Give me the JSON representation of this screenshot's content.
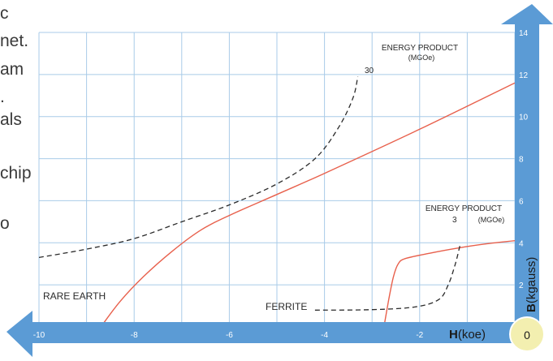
{
  "side_text": [
    "c",
    "net.",
    "am",
    ".",
    "als",
    "",
    "chip",
    "",
    "o"
  ],
  "chart_data": {
    "type": "line",
    "title": "",
    "xlabel_letter": "H",
    "xlabel_unit": "(koe)",
    "ylabel_letter": "B",
    "ylabel_unit": "(kgauss)",
    "xlim": [
      -10,
      0
    ],
    "ylim": [
      0,
      14
    ],
    "x_ticks": [
      -10,
      -8,
      -6,
      -4,
      -2
    ],
    "y_ticks": [
      2,
      4,
      6,
      8,
      10,
      12,
      14
    ],
    "origin_label": "0",
    "grid": true,
    "series": [
      {
        "name": "RARE EARTH",
        "style": "solid",
        "color": "#e8604c",
        "points": [
          [
            -8.7,
            0
          ],
          [
            -8.3,
            1.2
          ],
          [
            -7.8,
            2.4
          ],
          [
            -7.2,
            3.6
          ],
          [
            -6.6,
            4.6
          ],
          [
            -6.0,
            5.3
          ],
          [
            -5.0,
            6.3
          ],
          [
            -4.0,
            7.3
          ],
          [
            -2.0,
            9.4
          ],
          [
            0.0,
            11.6
          ]
        ]
      },
      {
        "name": "FERRITE",
        "style": "solid",
        "color": "#e8604c",
        "points": [
          [
            -2.75,
            0
          ],
          [
            -2.65,
            1.3
          ],
          [
            -2.55,
            2.4
          ],
          [
            -2.45,
            3.0
          ],
          [
            -2.3,
            3.25
          ],
          [
            -1.8,
            3.5
          ],
          [
            -1.2,
            3.75
          ],
          [
            -0.6,
            3.95
          ],
          [
            0.0,
            4.1
          ]
        ]
      },
      {
        "name": "ENERGY PRODUCT 30",
        "style": "dashed",
        "color": "#2a2a2a",
        "points": [
          [
            -10,
            3.3
          ],
          [
            -9,
            3.7
          ],
          [
            -8,
            4.2
          ],
          [
            -7,
            5.0
          ],
          [
            -6,
            5.8
          ],
          [
            -5,
            6.8
          ],
          [
            -4.2,
            8.0
          ],
          [
            -3.7,
            9.5
          ],
          [
            -3.4,
            10.9
          ],
          [
            -3.3,
            11.9
          ]
        ]
      },
      {
        "name": "ENERGY PRODUCT 3",
        "style": "dashed",
        "color": "#2a2a2a",
        "points": [
          [
            -4.2,
            0.8
          ],
          [
            -3.0,
            0.82
          ],
          [
            -2.1,
            0.95
          ],
          [
            -1.6,
            1.3
          ],
          [
            -1.4,
            2.0
          ],
          [
            -1.25,
            3.0
          ],
          [
            -1.15,
            3.9
          ]
        ]
      }
    ],
    "annotations": [
      {
        "id": "rare-earth-label",
        "text": "RARE EARTH"
      },
      {
        "id": "ferrite-label",
        "text": "FERRITE"
      },
      {
        "id": "ep30-title",
        "text": "ENERGY PRODUCT"
      },
      {
        "id": "ep30-unit",
        "text": "(MGOe)"
      },
      {
        "id": "ep30-value",
        "text": "30"
      },
      {
        "id": "ep3-title",
        "text": "ENERGY PRODUCT"
      },
      {
        "id": "ep3-unit",
        "text": "(MGOe)"
      },
      {
        "id": "ep3-value",
        "text": "3"
      }
    ],
    "colors": {
      "axis_band": "#5b9bd5",
      "grid": "#a9cbe8",
      "curve": "#e8604c",
      "dashed": "#2a2a2a",
      "tick_text": "#ffffff",
      "axis_label": "#1a1a1a",
      "origin_circle": "#f3efb0"
    }
  }
}
